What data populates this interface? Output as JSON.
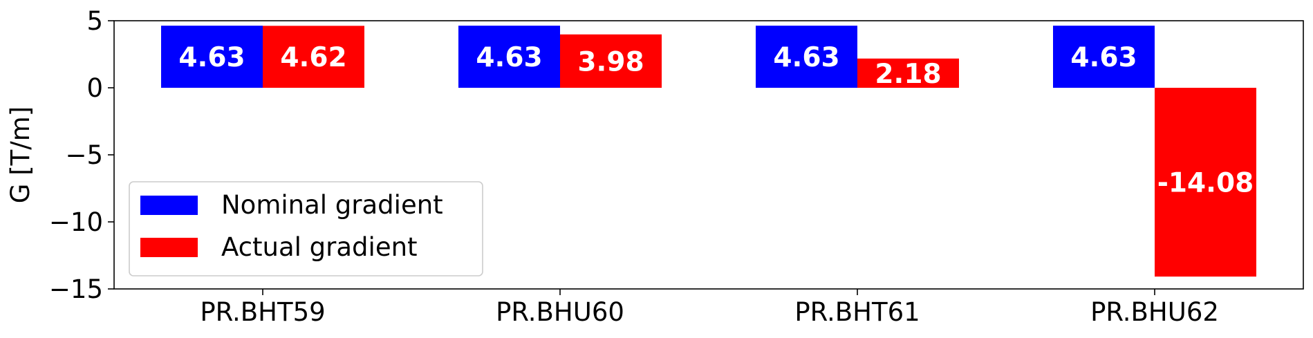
{
  "chart_data": {
    "type": "bar",
    "categories": [
      "PR.BHT59",
      "PR.BHU60",
      "PR.BHT61",
      "PR.BHU62"
    ],
    "series": [
      {
        "name": "Nominal gradient",
        "color": "#0000ff",
        "values": [
          4.63,
          4.63,
          4.63,
          4.63
        ],
        "labels": [
          "4.63",
          "4.63",
          "4.63",
          "4.63"
        ]
      },
      {
        "name": "Actual gradient",
        "color": "#ff0000",
        "values": [
          4.62,
          3.98,
          2.18,
          -14.08
        ],
        "labels": [
          "4.62",
          "3.98",
          "2.18",
          "-14.08"
        ]
      }
    ],
    "ylabel": "G [T/m]",
    "xlabel": "",
    "title": "",
    "ylim": [
      -15,
      5
    ],
    "yticks": [
      5,
      0,
      -5,
      -10,
      -15
    ],
    "ytick_labels": [
      "5",
      "0",
      "−5",
      "−10",
      "−15"
    ],
    "grid": false,
    "legend_position": "lower-left"
  }
}
